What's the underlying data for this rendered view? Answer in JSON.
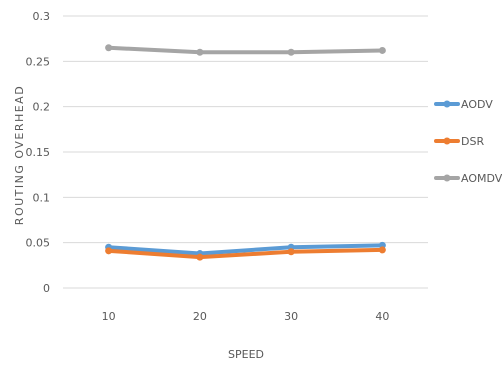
{
  "chart_data": {
    "type": "line",
    "title": "",
    "xlabel": "SPEED",
    "ylabel": "ROUTING OVERHEAD",
    "categories": [
      "10",
      "20",
      "30",
      "40"
    ],
    "ylim": [
      0,
      0.3
    ],
    "yticks": [
      0,
      0.05,
      0.1,
      0.15,
      0.2,
      0.25,
      0.3
    ],
    "ytick_labels": [
      "0",
      "0.05",
      "0.1",
      "0.15",
      "0.2",
      "0.25",
      "0.3"
    ],
    "grid": true,
    "legend_position": "right",
    "series": [
      {
        "name": "AODV",
        "values": [
          0.045,
          0.038,
          0.045,
          0.047
        ],
        "color": "#5b9bd5"
      },
      {
        "name": "DSR",
        "values": [
          0.041,
          0.034,
          0.04,
          0.042
        ],
        "color": "#ed7d31"
      },
      {
        "name": "AOMDV",
        "values": [
          0.265,
          0.26,
          0.26,
          0.262
        ],
        "color": "#a5a5a5"
      }
    ]
  }
}
